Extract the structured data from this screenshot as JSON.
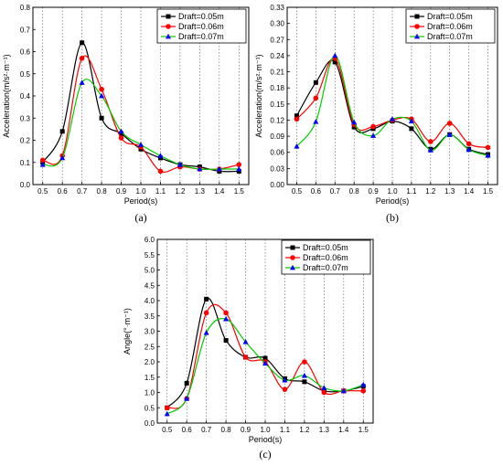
{
  "chart_data": [
    {
      "id": "a",
      "type": "line",
      "caption": "(a)",
      "xlabel": "Period(s)",
      "ylabel": "Acceleration(m/s²·m⁻¹)",
      "x": [
        0.5,
        0.6,
        0.7,
        0.8,
        0.9,
        1.0,
        1.1,
        1.2,
        1.3,
        1.4,
        1.5
      ],
      "xlim": [
        0.45,
        1.55
      ],
      "ylim": [
        0.0,
        0.8
      ],
      "xticks": [
        "0.5",
        "0.6",
        "0.7",
        "0.8",
        "0.9",
        "1.0",
        "1.1",
        "1.2",
        "1.3",
        "1.4",
        "1.5"
      ],
      "yticks": [
        "0.0",
        "0.1",
        "0.2",
        "0.3",
        "0.4",
        "0.5",
        "0.6",
        "0.7",
        "0.8"
      ],
      "grid": "vertical dotted",
      "legend_position": "top-right",
      "series": [
        {
          "name": "Draft=0.05m",
          "color": "#000000",
          "marker": "square",
          "values": [
            0.1,
            0.24,
            0.64,
            0.3,
            0.23,
            0.16,
            0.12,
            0.09,
            0.08,
            0.06,
            0.06
          ]
        },
        {
          "name": "Draft=0.06m",
          "color": "#ff0000",
          "marker": "circle",
          "values": [
            0.11,
            0.13,
            0.57,
            0.43,
            0.21,
            0.17,
            0.06,
            0.08,
            0.07,
            0.07,
            0.09
          ]
        },
        {
          "name": "Draft=0.07m",
          "color": "#0000ff",
          "line_color": "#00cc00",
          "marker": "triangle",
          "values": [
            0.09,
            0.12,
            0.46,
            0.4,
            0.24,
            0.18,
            0.13,
            0.09,
            0.07,
            0.07,
            0.07
          ]
        }
      ]
    },
    {
      "id": "b",
      "type": "line",
      "caption": "(b)",
      "xlabel": "Period(s)",
      "ylabel": "Acceleration(m/s²·m⁻¹)",
      "x": [
        0.5,
        0.6,
        0.7,
        0.8,
        0.9,
        1.0,
        1.1,
        1.2,
        1.3,
        1.4,
        1.5
      ],
      "xlim": [
        0.45,
        1.55
      ],
      "ylim": [
        0.0,
        0.33
      ],
      "xticks": [
        "0.5",
        "0.6",
        "0.7",
        "0.8",
        "0.9",
        "1.0",
        "1.1",
        "1.2",
        "1.3",
        "1.4",
        "1.5"
      ],
      "yticks": [
        "0.00",
        "0.03",
        "0.06",
        "0.09",
        "0.12",
        "0.15",
        "0.18",
        "0.21",
        "0.24",
        "0.27",
        "0.30",
        "0.33"
      ],
      "grid": "vertical dotted",
      "legend_position": "top-right",
      "series": [
        {
          "name": "Draft=0.05m",
          "color": "#000000",
          "marker": "square",
          "values": [
            0.128,
            0.19,
            0.228,
            0.107,
            0.104,
            0.118,
            0.104,
            0.066,
            0.093,
            0.066,
            0.056
          ]
        },
        {
          "name": "Draft=0.06m",
          "color": "#ff0000",
          "marker": "circle",
          "values": [
            0.122,
            0.161,
            0.235,
            0.112,
            0.108,
            0.12,
            0.122,
            0.08,
            0.114,
            0.076,
            0.069
          ]
        },
        {
          "name": "Draft=0.07m",
          "color": "#0000ff",
          "line_color": "#00cc00",
          "marker": "triangle",
          "values": [
            0.071,
            0.117,
            0.24,
            0.116,
            0.091,
            0.122,
            0.118,
            0.064,
            0.093,
            0.065,
            0.054
          ]
        }
      ]
    },
    {
      "id": "c",
      "type": "line",
      "caption": "(c)",
      "xlabel": "Period(s)",
      "ylabel": "Angle(°·m⁻¹)",
      "x": [
        0.5,
        0.6,
        0.7,
        0.8,
        0.9,
        1.0,
        1.1,
        1.2,
        1.3,
        1.4,
        1.5
      ],
      "xlim": [
        0.45,
        1.55
      ],
      "ylim": [
        0.0,
        6.0
      ],
      "xticks": [
        "0.5",
        "0.6",
        "0.7",
        "0.8",
        "0.9",
        "1.0",
        "1.1",
        "1.2",
        "1.3",
        "1.4",
        "1.5"
      ],
      "yticks": [
        "0.0",
        "0.5",
        "1.0",
        "1.5",
        "2.0",
        "2.5",
        "3.0",
        "3.5",
        "4.0",
        "4.5",
        "5.0",
        "5.5",
        "6.0"
      ],
      "grid": "vertical dotted",
      "legend_position": "top-right",
      "series": [
        {
          "name": "Draft=0.05m",
          "color": "#000000",
          "marker": "square",
          "values": [
            0.5,
            1.3,
            4.05,
            2.7,
            2.15,
            2.12,
            1.45,
            1.35,
            1.05,
            1.05,
            1.2
          ]
        },
        {
          "name": "Draft=0.06m",
          "color": "#ff0000",
          "marker": "circle",
          "values": [
            0.5,
            0.8,
            3.6,
            3.6,
            2.15,
            2.0,
            1.1,
            2.0,
            1.0,
            1.05,
            1.05
          ]
        },
        {
          "name": "Draft=0.07m",
          "color": "#0000ff",
          "line_color": "#00cc00",
          "marker": "triangle",
          "values": [
            0.3,
            0.8,
            2.95,
            3.4,
            2.65,
            1.95,
            1.4,
            1.55,
            1.15,
            1.05,
            1.25
          ]
        }
      ]
    }
  ]
}
